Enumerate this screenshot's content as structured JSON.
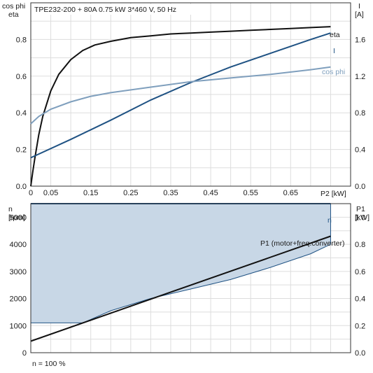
{
  "title": "TPE232-200 + 80A   0.75 kW   3*460 V, 50 Hz",
  "footer": "n = 100 %",
  "colors": {
    "eta": "#111111",
    "current": "#1f5283",
    "cos_phi": "#7f9fbd",
    "speed_fill": "#c8d7e6",
    "speed_line": "#1f5283",
    "p1": "#111111",
    "grid": "#dddddd"
  },
  "top": {
    "y_left_label": [
      "cos phi",
      "eta"
    ],
    "y_right_label": [
      "I",
      "[A]"
    ],
    "x_label": "P2 [kW]",
    "x_ticks": [
      "0",
      "0.05",
      "0.15",
      "0.25",
      "0.35",
      "0.45",
      "0.55",
      "0.65"
    ],
    "y_left_ticks": [
      "0.0",
      "0.2",
      "0.4",
      "0.6",
      "0.8"
    ],
    "y_right_ticks": [
      "0.0",
      "0.4",
      "0.8",
      "1.2",
      "1.6"
    ],
    "curve_labels": {
      "eta": "eta",
      "current": "I",
      "cos_phi": "cos phi"
    }
  },
  "bottom": {
    "y_left_label": [
      "n",
      "[rpm]"
    ],
    "y_right_label": [
      "P1",
      "[kW]"
    ],
    "y_left_ticks": [
      "0",
      "1000",
      "2000",
      "3000",
      "4000",
      "5000"
    ],
    "y_right_ticks": [
      "0.0",
      "0.2",
      "0.4",
      "0.6",
      "0.8",
      "1.0"
    ],
    "curve_labels": {
      "speed": "n",
      "p1": "P1 (motor+freq.converter)"
    }
  },
  "chart_data": [
    {
      "type": "line",
      "title": "TPE232-200 + 80A   0.75 kW   3*460 V, 50 Hz",
      "xlabel": "P2 [kW]",
      "ylabel_left": "cos phi / eta",
      "ylabel_right": "I [A]",
      "xlim": [
        0,
        0.8
      ],
      "ylim_left": [
        0,
        1.0
      ],
      "ylim_right": [
        0,
        2.0
      ],
      "grid": true,
      "series": [
        {
          "name": "eta",
          "axis": "left",
          "x": [
            0,
            0.005,
            0.01,
            0.02,
            0.03,
            0.05,
            0.07,
            0.1,
            0.13,
            0.16,
            0.2,
            0.25,
            0.3,
            0.35,
            0.4,
            0.45,
            0.5,
            0.55,
            0.6,
            0.65,
            0.7,
            0.75
          ],
          "y": [
            0,
            0.08,
            0.15,
            0.28,
            0.38,
            0.52,
            0.61,
            0.69,
            0.74,
            0.77,
            0.79,
            0.81,
            0.82,
            0.83,
            0.835,
            0.84,
            0.845,
            0.85,
            0.855,
            0.86,
            0.865,
            0.87
          ]
        },
        {
          "name": "I",
          "axis": "right",
          "x": [
            0,
            0.1,
            0.2,
            0.3,
            0.4,
            0.5,
            0.6,
            0.7,
            0.75
          ],
          "y": [
            0.31,
            0.51,
            0.72,
            0.94,
            1.13,
            1.3,
            1.45,
            1.6,
            1.67
          ]
        },
        {
          "name": "cos phi",
          "axis": "left",
          "x": [
            0,
            0.02,
            0.05,
            0.1,
            0.15,
            0.2,
            0.3,
            0.4,
            0.5,
            0.6,
            0.7,
            0.75
          ],
          "y": [
            0.34,
            0.38,
            0.42,
            0.46,
            0.49,
            0.51,
            0.54,
            0.57,
            0.59,
            0.61,
            0.635,
            0.65
          ]
        }
      ]
    },
    {
      "type": "area",
      "xlabel": "P2 [kW]",
      "ylabel_left": "n [rpm]",
      "ylabel_right": "P1 [kW]",
      "xlim": [
        0,
        0.8
      ],
      "ylim_left": [
        0,
        5500
      ],
      "ylim_right": [
        0,
        1.1
      ],
      "grid": true,
      "series": [
        {
          "name": "n",
          "axis": "left",
          "role": "upper bound",
          "x": [
            0,
            0.75
          ],
          "y": [
            5500,
            5500
          ]
        },
        {
          "name": "n",
          "axis": "left",
          "role": "lower bound",
          "x": [
            0,
            0.13,
            0.2,
            0.3,
            0.4,
            0.5,
            0.6,
            0.7,
            0.75
          ],
          "y": [
            1100,
            1100,
            1550,
            2000,
            2350,
            2700,
            3150,
            3650,
            4000
          ]
        },
        {
          "name": "P1 (motor+freq.converter)",
          "axis": "right",
          "x": [
            0,
            0.75
          ],
          "y": [
            0.085,
            0.86
          ]
        }
      ]
    }
  ]
}
